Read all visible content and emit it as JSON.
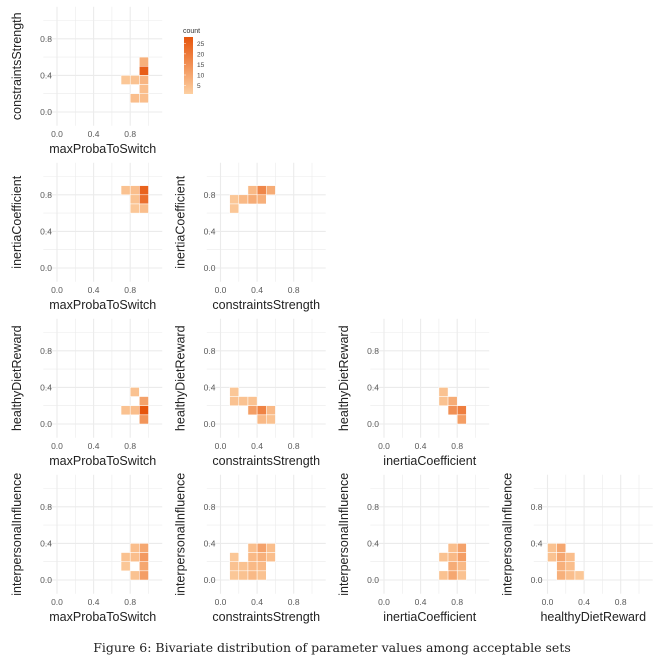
{
  "figure": {
    "caption": "Figure 6: Bivariate distribution of parameter values among acceptable sets"
  },
  "chart_data": {
    "type": "heatmap",
    "layout": "lower-triangular pairs matrix",
    "bin_width": 0.1,
    "x_ticks": [
      "0.0",
      "0.4",
      "0.8"
    ],
    "y_ticks": [
      "0.0",
      "0.4",
      "0.8"
    ],
    "axis_range": [
      -0.15,
      1.15
    ],
    "grid": true,
    "colors": {
      "low": "#fdd0a2",
      "high": "#e6550d",
      "grid": "#ebebeb"
    },
    "legend": {
      "title": "count",
      "position": "top-right",
      "ticks": [
        5,
        10,
        15,
        20,
        25
      ],
      "range": [
        1,
        28
      ]
    },
    "panels": [
      {
        "row": 0,
        "col": 0,
        "xlabel": "maxProbaToSwitch",
        "ylabel": "constraintsStrength",
        "cells": [
          [
            0.95,
            0.55,
            8
          ],
          [
            0.95,
            0.45,
            26
          ],
          [
            0.95,
            0.35,
            7
          ],
          [
            0.95,
            0.25,
            5
          ],
          [
            0.95,
            0.15,
            5
          ],
          [
            0.85,
            0.35,
            4
          ],
          [
            0.85,
            0.15,
            5
          ],
          [
            0.75,
            0.35,
            3
          ]
        ]
      },
      {
        "row": 1,
        "col": 0,
        "xlabel": "maxProbaToSwitch",
        "ylabel": "inertiaCoefficient",
        "cells": [
          [
            0.75,
            0.85,
            4
          ],
          [
            0.85,
            0.85,
            5
          ],
          [
            0.85,
            0.75,
            4
          ],
          [
            0.85,
            0.65,
            3
          ],
          [
            0.95,
            0.85,
            25
          ],
          [
            0.95,
            0.75,
            22
          ],
          [
            0.95,
            0.65,
            5
          ]
        ]
      },
      {
        "row": 1,
        "col": 1,
        "xlabel": "constraintsStrength",
        "ylabel": "inertiaCoefficient",
        "cells": [
          [
            0.15,
            0.75,
            3
          ],
          [
            0.15,
            0.65,
            3
          ],
          [
            0.25,
            0.75,
            6
          ],
          [
            0.35,
            0.85,
            6
          ],
          [
            0.35,
            0.75,
            9
          ],
          [
            0.45,
            0.85,
            17
          ],
          [
            0.45,
            0.75,
            8
          ],
          [
            0.55,
            0.85,
            9
          ]
        ]
      },
      {
        "row": 2,
        "col": 0,
        "xlabel": "maxProbaToSwitch",
        "ylabel": "healthyDietReward",
        "cells": [
          [
            0.75,
            0.15,
            4
          ],
          [
            0.85,
            0.35,
            4
          ],
          [
            0.85,
            0.15,
            5
          ],
          [
            0.95,
            0.25,
            11
          ],
          [
            0.95,
            0.15,
            28
          ],
          [
            0.95,
            0.05,
            14
          ]
        ]
      },
      {
        "row": 2,
        "col": 1,
        "xlabel": "constraintsStrength",
        "ylabel": "healthyDietReward",
        "cells": [
          [
            0.15,
            0.35,
            3
          ],
          [
            0.15,
            0.25,
            4
          ],
          [
            0.25,
            0.25,
            4
          ],
          [
            0.35,
            0.25,
            4
          ],
          [
            0.35,
            0.15,
            12
          ],
          [
            0.45,
            0.15,
            18
          ],
          [
            0.45,
            0.05,
            6
          ],
          [
            0.55,
            0.15,
            6
          ],
          [
            0.55,
            0.05,
            4
          ]
        ]
      },
      {
        "row": 2,
        "col": 2,
        "xlabel": "inertiaCoefficient",
        "ylabel": "healthyDietReward",
        "cells": [
          [
            0.65,
            0.35,
            4
          ],
          [
            0.65,
            0.25,
            4
          ],
          [
            0.75,
            0.25,
            9
          ],
          [
            0.75,
            0.15,
            15
          ],
          [
            0.85,
            0.15,
            19
          ],
          [
            0.85,
            0.05,
            12
          ]
        ]
      },
      {
        "row": 3,
        "col": 0,
        "xlabel": "maxProbaToSwitch",
        "ylabel": "interpersonalInfluence",
        "cells": [
          [
            0.75,
            0.25,
            4
          ],
          [
            0.75,
            0.15,
            3
          ],
          [
            0.85,
            0.35,
            5
          ],
          [
            0.85,
            0.25,
            5
          ],
          [
            0.85,
            0.05,
            4
          ],
          [
            0.95,
            0.35,
            10
          ],
          [
            0.95,
            0.25,
            13
          ],
          [
            0.95,
            0.15,
            10
          ],
          [
            0.95,
            0.05,
            12
          ]
        ]
      },
      {
        "row": 3,
        "col": 1,
        "xlabel": "constraintsStrength",
        "ylabel": "interpersonalInfluence",
        "cells": [
          [
            0.15,
            0.25,
            3
          ],
          [
            0.15,
            0.15,
            4
          ],
          [
            0.15,
            0.05,
            3
          ],
          [
            0.25,
            0.15,
            4
          ],
          [
            0.25,
            0.05,
            4
          ],
          [
            0.35,
            0.35,
            5
          ],
          [
            0.35,
            0.25,
            6
          ],
          [
            0.35,
            0.15,
            6
          ],
          [
            0.35,
            0.05,
            6
          ],
          [
            0.45,
            0.35,
            11
          ],
          [
            0.45,
            0.25,
            8
          ],
          [
            0.45,
            0.15,
            6
          ],
          [
            0.45,
            0.05,
            4
          ],
          [
            0.55,
            0.35,
            5
          ],
          [
            0.55,
            0.25,
            5
          ]
        ]
      },
      {
        "row": 3,
        "col": 2,
        "xlabel": "inertiaCoefficient",
        "ylabel": "interpersonalInfluence",
        "cells": [
          [
            0.65,
            0.25,
            4
          ],
          [
            0.65,
            0.05,
            4
          ],
          [
            0.75,
            0.35,
            5
          ],
          [
            0.75,
            0.25,
            6
          ],
          [
            0.75,
            0.15,
            9
          ],
          [
            0.75,
            0.05,
            10
          ],
          [
            0.85,
            0.35,
            11
          ],
          [
            0.85,
            0.25,
            12
          ],
          [
            0.85,
            0.15,
            6
          ],
          [
            0.85,
            0.05,
            4
          ]
        ]
      },
      {
        "row": 3,
        "col": 3,
        "xlabel": "healthyDietReward",
        "ylabel": "interpersonalInfluence",
        "cells": [
          [
            0.05,
            0.35,
            4
          ],
          [
            0.05,
            0.25,
            4
          ],
          [
            0.15,
            0.35,
            10
          ],
          [
            0.15,
            0.25,
            10
          ],
          [
            0.15,
            0.15,
            8
          ],
          [
            0.15,
            0.05,
            8
          ],
          [
            0.25,
            0.25,
            5
          ],
          [
            0.25,
            0.15,
            5
          ],
          [
            0.25,
            0.05,
            5
          ],
          [
            0.35,
            0.05,
            3
          ]
        ]
      }
    ]
  }
}
